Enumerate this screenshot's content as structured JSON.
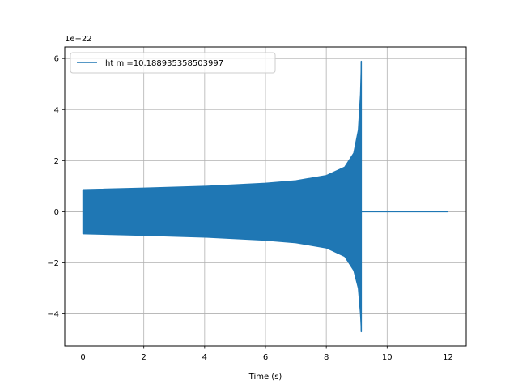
{
  "chart_data": {
    "type": "line",
    "title": "",
    "xlabel": "Time (s)",
    "ylabel": "",
    "y_offset_label": "1e−22",
    "y_scale_exponent": -22,
    "xlim": [
      -0.6,
      12.6
    ],
    "ylim": [
      -5.25,
      6.45
    ],
    "x_ticks": [
      0,
      2,
      4,
      6,
      8,
      10,
      12
    ],
    "x_tick_labels": [
      "0",
      "2",
      "4",
      "6",
      "8",
      "10",
      "12"
    ],
    "y_ticks": [
      -4,
      -2,
      0,
      2,
      4,
      6
    ],
    "y_tick_labels": [
      "−4",
      "−2",
      "0",
      "2",
      "4",
      "6"
    ],
    "grid": true,
    "legend_position": "top-left",
    "series": [
      {
        "name": "ht m =10.188935358503997",
        "color": "#1f77b4",
        "description_points": {
          "start_time": 0,
          "merger_time": 9.15,
          "end_time": 12,
          "initial_amplitude": 0.87,
          "upper_envelope": [
            [
              0,
              0.87
            ],
            [
              2,
              0.93
            ],
            [
              4,
              1.0
            ],
            [
              6,
              1.12
            ],
            [
              7,
              1.22
            ],
            [
              8,
              1.42
            ],
            [
              8.6,
              1.75
            ],
            [
              8.9,
              2.3
            ],
            [
              9.05,
              3.2
            ],
            [
              9.12,
              4.6
            ],
            [
              9.15,
              5.9
            ]
          ],
          "lower_envelope": [
            [
              0,
              -0.87
            ],
            [
              2,
              -0.93
            ],
            [
              4,
              -1.0
            ],
            [
              6,
              -1.12
            ],
            [
              7,
              -1.22
            ],
            [
              8,
              -1.42
            ],
            [
              8.6,
              -1.75
            ],
            [
              8.9,
              -2.3
            ],
            [
              9.05,
              -3.0
            ],
            [
              9.12,
              -4.0
            ],
            [
              9.15,
              -4.7
            ]
          ],
          "post_merger_value": 0
        }
      }
    ]
  }
}
